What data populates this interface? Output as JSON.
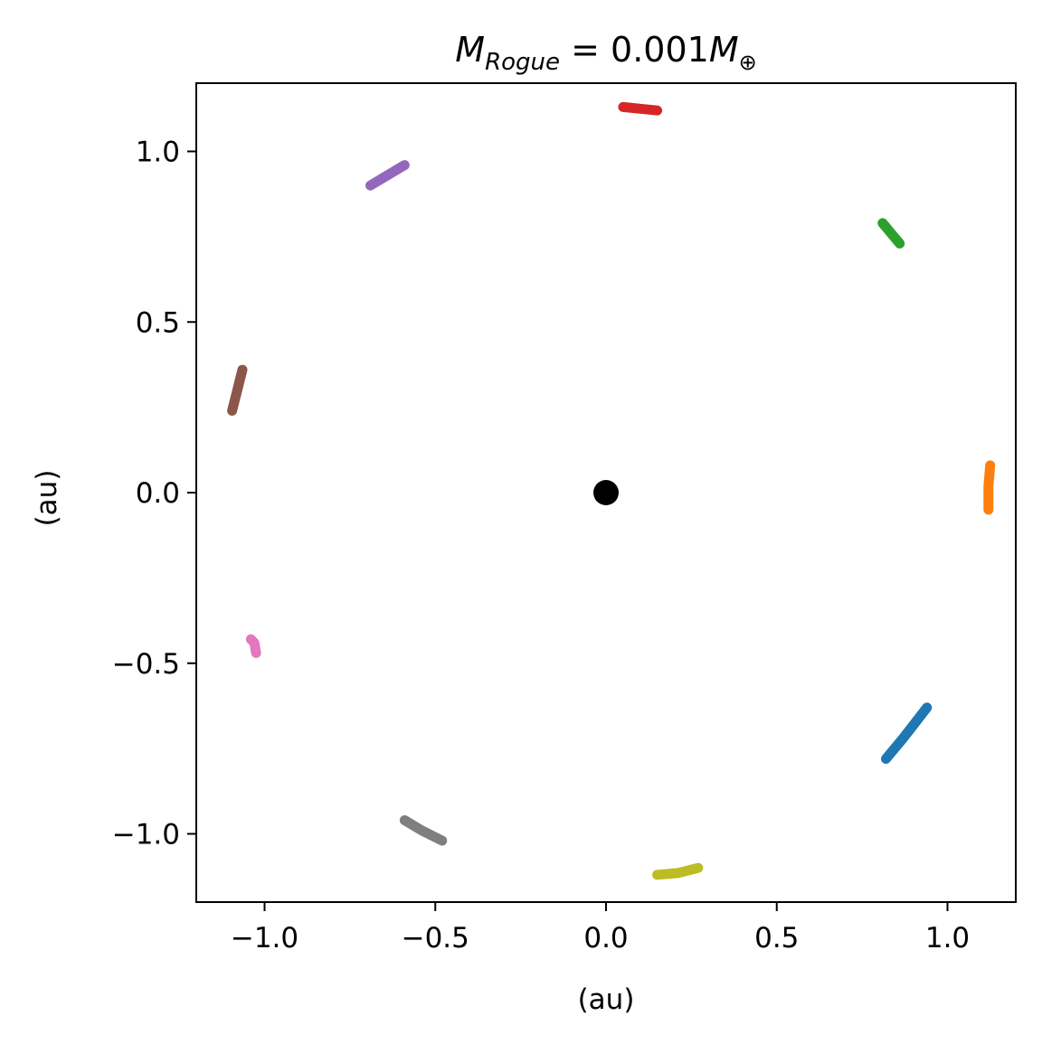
{
  "chart_data": {
    "type": "scatter",
    "title": {
      "M": "M",
      "rogue_sub": "Rogue",
      "equals_value": " = 0.001",
      "M2": "M",
      "earth_sub": "⊕"
    },
    "xlabel": "(au)",
    "ylabel": "(au)",
    "xlim": [
      -1.2,
      1.2
    ],
    "ylim": [
      -1.2,
      1.2
    ],
    "grid": false,
    "legend": "none",
    "xticks": [
      {
        "value": -1.0,
        "label": "−1.0"
      },
      {
        "value": -0.5,
        "label": "−0.5"
      },
      {
        "value": 0.0,
        "label": "0.0"
      },
      {
        "value": 0.5,
        "label": "0.5"
      },
      {
        "value": 1.0,
        "label": "1.0"
      }
    ],
    "yticks": [
      {
        "value": 1.0,
        "label": "1.0"
      },
      {
        "value": 0.5,
        "label": "0.5"
      },
      {
        "value": 0.0,
        "label": "0.0"
      },
      {
        "value": -0.5,
        "label": "−0.5"
      },
      {
        "value": -1.0,
        "label": "−1.0"
      }
    ],
    "central_body": {
      "x": 0.0,
      "y": 0.0,
      "color": "#000000"
    },
    "series": [
      {
        "color": "#1f77b4",
        "x": [
          0.82,
          0.87,
          0.94
        ],
        "y": [
          -0.78,
          -0.72,
          -0.63
        ]
      },
      {
        "color": "#ff7f0e",
        "x": [
          1.12,
          1.12,
          1.125
        ],
        "y": [
          -0.05,
          0.02,
          0.08
        ]
      },
      {
        "color": "#2ca02c",
        "x": [
          0.81,
          0.835,
          0.86
        ],
        "y": [
          0.79,
          0.76,
          0.73
        ]
      },
      {
        "color": "#d62728",
        "x": [
          0.05,
          0.1,
          0.15
        ],
        "y": [
          1.13,
          1.125,
          1.12
        ]
      },
      {
        "color": "#9467bd",
        "x": [
          -0.69,
          -0.64,
          -0.59
        ],
        "y": [
          0.9,
          0.93,
          0.96
        ]
      },
      {
        "color": "#8c564b",
        "x": [
          -1.095,
          -1.08,
          -1.065
        ],
        "y": [
          0.24,
          0.3,
          0.36
        ]
      },
      {
        "color": "#e377c2",
        "x": [
          -1.04,
          -1.03,
          -1.025
        ],
        "y": [
          -0.43,
          -0.44,
          -0.47
        ]
      },
      {
        "color": "#7f7f7f",
        "x": [
          -0.59,
          -0.54,
          -0.48
        ],
        "y": [
          -0.96,
          -0.99,
          -1.02
        ]
      },
      {
        "color": "#bcbd22",
        "x": [
          0.15,
          0.21,
          0.27
        ],
        "y": [
          -1.12,
          -1.115,
          -1.1
        ]
      }
    ]
  }
}
